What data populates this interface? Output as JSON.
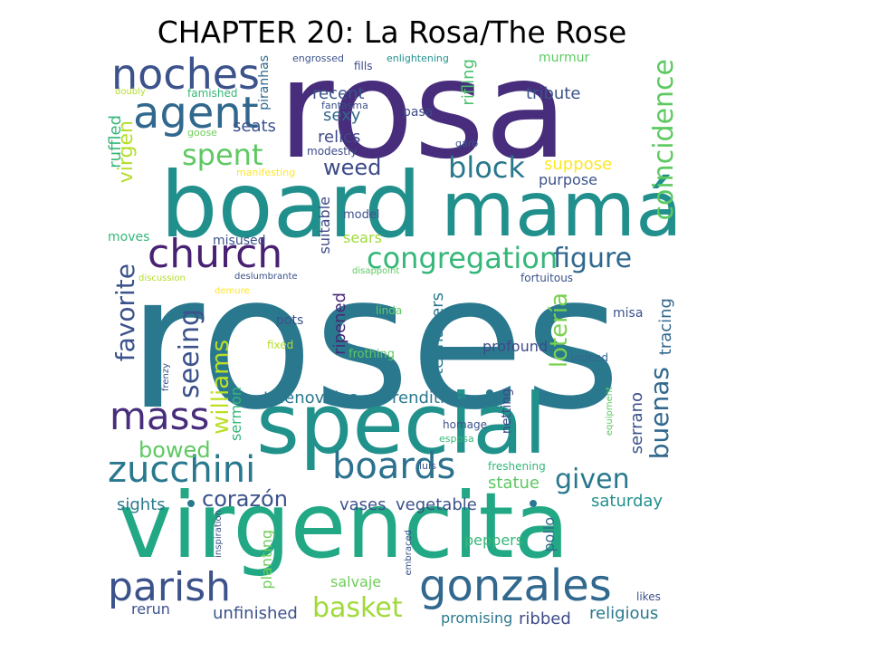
{
  "title": "CHAPTER 20: La Rosa/The Rose",
  "words": [
    {
      "t": "rosa",
      "c": "#472d7b"
    },
    {
      "t": "roses",
      "c": "#2a788e"
    },
    {
      "t": "board",
      "c": "#21908d"
    },
    {
      "t": "mamá",
      "c": "#21908d"
    },
    {
      "t": "virgencita",
      "c": "#22a884"
    },
    {
      "t": "special",
      "c": "#21918c"
    },
    {
      "t": "noches",
      "c": "#3b528b"
    },
    {
      "t": "agent",
      "c": "#31688e"
    },
    {
      "t": "church",
      "c": "#482173"
    },
    {
      "t": "parish",
      "c": "#3b528b"
    },
    {
      "t": "gonzales",
      "c": "#31688e"
    },
    {
      "t": "zucchini",
      "c": "#2a788e"
    },
    {
      "t": "boards",
      "c": "#2c718e"
    },
    {
      "t": "mass",
      "c": "#472d7b"
    },
    {
      "t": "congregation",
      "c": "#35b779"
    },
    {
      "t": "block",
      "c": "#2a788e"
    },
    {
      "t": "coincidence",
      "c": "#5ec962"
    },
    {
      "t": "figure",
      "c": "#31688e"
    },
    {
      "t": "spent",
      "c": "#5ec962"
    },
    {
      "t": "weed",
      "c": "#3e4a89"
    },
    {
      "t": "virgen",
      "c": "#b5de2b"
    },
    {
      "t": "favorite",
      "c": "#3b528b"
    },
    {
      "t": "seeing",
      "c": "#3b528b"
    },
    {
      "t": "williams",
      "c": "#bddf26"
    },
    {
      "t": "buenas",
      "c": "#31688e"
    },
    {
      "t": "lotería",
      "c": "#7ad151"
    },
    {
      "t": "given",
      "c": "#2a788e"
    },
    {
      "t": "basket",
      "c": "#a0da39"
    },
    {
      "t": "corazón",
      "c": "#3b528b"
    },
    {
      "t": "bowed",
      "c": "#5ec962"
    },
    {
      "t": "telenovelas",
      "c": "#2a788e"
    },
    {
      "t": "rendition",
      "c": "#2a788e"
    },
    {
      "t": "sexy",
      "c": "#31688e"
    },
    {
      "t": "recent",
      "c": "#3b528b"
    },
    {
      "t": "relics",
      "c": "#3e4a89"
    },
    {
      "t": "tribute",
      "c": "#3b528b"
    },
    {
      "t": "rifling",
      "c": "#4ac16d"
    },
    {
      "t": "suppose",
      "c": "#fde725"
    },
    {
      "t": "purpose",
      "c": "#3b528b"
    },
    {
      "t": "seats",
      "c": "#3b528b"
    },
    {
      "t": "ruffled",
      "c": "#35b779"
    },
    {
      "t": "suitable",
      "c": "#3e4a89"
    },
    {
      "t": "sears",
      "c": "#a0da39"
    },
    {
      "t": "ripened",
      "c": "#482878"
    },
    {
      "t": "teenagers",
      "c": "#2a788e"
    },
    {
      "t": "tracing",
      "c": "#31688e"
    },
    {
      "t": "profound",
      "c": "#3e4a89"
    },
    {
      "t": "serrano",
      "c": "#3b528b"
    },
    {
      "t": "statue",
      "c": "#5ec962"
    },
    {
      "t": "saturday",
      "c": "#21918c"
    },
    {
      "t": "vases",
      "c": "#3b528b"
    },
    {
      "t": "vegetable",
      "c": "#3b528b"
    },
    {
      "t": "sights",
      "c": "#2a788e"
    },
    {
      "t": "sermon",
      "c": "#35b779"
    },
    {
      "t": "salvaje",
      "c": "#6ece58"
    },
    {
      "t": "unfinished",
      "c": "#3b528b"
    },
    {
      "t": "rerun",
      "c": "#3b528b"
    },
    {
      "t": "promising",
      "c": "#2a788e"
    },
    {
      "t": "ribbed",
      "c": "#3e4a89"
    },
    {
      "t": "religious",
      "c": "#2a788e"
    },
    {
      "t": "peppers",
      "c": "#35b779"
    },
    {
      "t": "pollo",
      "c": "#31688e"
    },
    {
      "t": "planting",
      "c": "#6ece58"
    },
    {
      "t": "moves",
      "c": "#35b779"
    },
    {
      "t": "misused",
      "c": "#3b528b"
    },
    {
      "t": "model",
      "c": "#3b528b"
    },
    {
      "t": "pots",
      "c": "#3b528b"
    },
    {
      "t": "fixed",
      "c": "#b5de2b"
    },
    {
      "t": "frothing",
      "c": "#5ec962"
    },
    {
      "t": "linda",
      "c": "#5ec962"
    },
    {
      "t": "misa",
      "c": "#3b528b"
    },
    {
      "t": "indeed",
      "c": "#31688e"
    },
    {
      "t": "netting",
      "c": "#3e4a89"
    },
    {
      "t": "homage",
      "c": "#3b528b"
    },
    {
      "t": "esposa",
      "c": "#35b779"
    },
    {
      "t": "luis",
      "c": "#3b528b"
    },
    {
      "t": "freshening",
      "c": "#35b779"
    },
    {
      "t": "murmur",
      "c": "#5ec962"
    },
    {
      "t": "fills",
      "c": "#3e4a89"
    },
    {
      "t": "engrossed",
      "c": "#3b528b"
    },
    {
      "t": "enlightening",
      "c": "#21918c"
    },
    {
      "t": "piranhas",
      "c": "#31688e"
    },
    {
      "t": "famished",
      "c": "#35b779"
    },
    {
      "t": "doubly",
      "c": "#b5de2b"
    },
    {
      "t": "fantasma",
      "c": "#3b528b"
    },
    {
      "t": "pasa",
      "c": "#3e4a89"
    },
    {
      "t": "modestly",
      "c": "#3e4a89"
    },
    {
      "t": "goose",
      "c": "#6ece58"
    },
    {
      "t": "garb",
      "c": "#3b528b"
    },
    {
      "t": "manifesting",
      "c": "#fde725"
    },
    {
      "t": "deslumbrante",
      "c": "#3b528b"
    },
    {
      "t": "discussion",
      "c": "#b5de2b"
    },
    {
      "t": "disappoint",
      "c": "#5ec962"
    },
    {
      "t": "fortuitous",
      "c": "#3b528b"
    },
    {
      "t": "demure",
      "c": "#fde725"
    },
    {
      "t": "frenzy",
      "c": "#3b528b"
    },
    {
      "t": "equipment",
      "c": "#5ec962"
    },
    {
      "t": "inspiration",
      "c": "#3b528b"
    },
    {
      "t": "embraced",
      "c": "#3b528b"
    },
    {
      "t": "likes",
      "c": "#3b528b"
    }
  ]
}
